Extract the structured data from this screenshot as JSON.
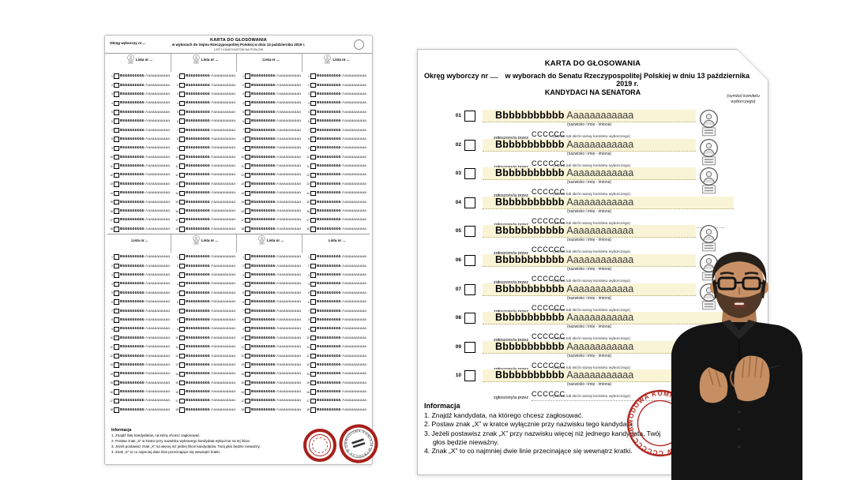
{
  "page": {
    "background": "#ffffff"
  },
  "sejm_ballot": {
    "okreg_label": "Okręg wyborczy nr ...",
    "title": "KARTA DO GŁOSOWANIA",
    "subtitle": "w wyborach do Sejmu Rzeczypospolitej Polskiej w dniu 13 października 2019 r.",
    "list_caption": "LISTY KANDYDATÓW NA POSŁÓW",
    "column_header": {
      "lista_label": "Lista nr ...",
      "committee_value": "CCCCCC",
      "committee_caption": "(nazwa lub skrót nazwy komitetu wyborczego)"
    },
    "candidate_name_bold": "Bbbbbbbbbb",
    "candidate_name_regular": "Aaaaaaaaaaa",
    "rows_per_column": 18,
    "sections": [
      {
        "columns_with_symbol": [
          true,
          true,
          false,
          true
        ]
      },
      {
        "columns_with_symbol": [
          false,
          true,
          true,
          false
        ]
      }
    ],
    "informacja": {
      "title": "Informacja",
      "items": [
        "1. Znajdź listę kandydatów, na którą chcesz zagłosować.",
        "2. Postaw znak „X” w kratce przy nazwisku wybranego kandydata wyłącznie na tej liście.",
        "3. Jeżeli postawisz znak „X” na więcej niż jednej liście kandydatów, Twój głos będzie nieważny.",
        "4. Znak „X” to co najmniej dwie linie przecinające się wewnątrz kratki."
      ]
    }
  },
  "senat_ballot": {
    "title": "KARTA DO GŁOSOWANIA",
    "okreg_label": "Okręg wyborczy nr ....",
    "subtitle": "w wyborach do Senatu Rzeczypospolitej Polskiej w dniu 13 października 2019 r.",
    "section_title": "KANDYDACI NA SENATORA",
    "symbol_caption": "(symbol komitetu wyborczego)",
    "row_template": {
      "name_bold": "Bbbbbbbbbbb",
      "name_regular": "Aaaaaaaaaaaa",
      "name_caption": "(nazwisko i imię - imiona)",
      "nominated_label": "zgłoszony/a przez",
      "committee_value": "CCCCCC",
      "committee_caption": "(nazwa lub skrót nazwy komitetu wyborczego)"
    },
    "candidates": [
      {
        "number": "01",
        "has_symbol": true
      },
      {
        "number": "02",
        "has_symbol": true
      },
      {
        "number": "03",
        "has_symbol": true
      },
      {
        "number": "04",
        "has_symbol": false
      },
      {
        "number": "05",
        "has_symbol": true
      },
      {
        "number": "06",
        "has_symbol": true
      },
      {
        "number": "07",
        "has_symbol": true
      },
      {
        "number": "08",
        "has_symbol": false
      },
      {
        "number": "09",
        "has_symbol": false
      },
      {
        "number": "10",
        "has_symbol": false
      }
    ],
    "informacja": {
      "title": "Informacja",
      "items": [
        "1. Znajdź kandydata, na którego chcesz zagłosować.",
        "2. Postaw znak „X” w kratce wyłącznie przy nazwisku tego kandydata.",
        "3. Jeżeli postawisz znak „X” przy nazwisku więcej niż jednego kandydata, Twój głos będzie nieważny.",
        "4. Znak „X” to co najmniej dwie linie przecinające się wewnątrz kratki."
      ]
    }
  },
  "stamp": {
    "circular_text": "OBWODOWA KOMISJA WYBORCZA W CCCCCC"
  },
  "colors": {
    "stamp_red": "#a8201a",
    "highlight_yellow": "#faf4d7",
    "ballot_border": "#bdbdbd"
  }
}
